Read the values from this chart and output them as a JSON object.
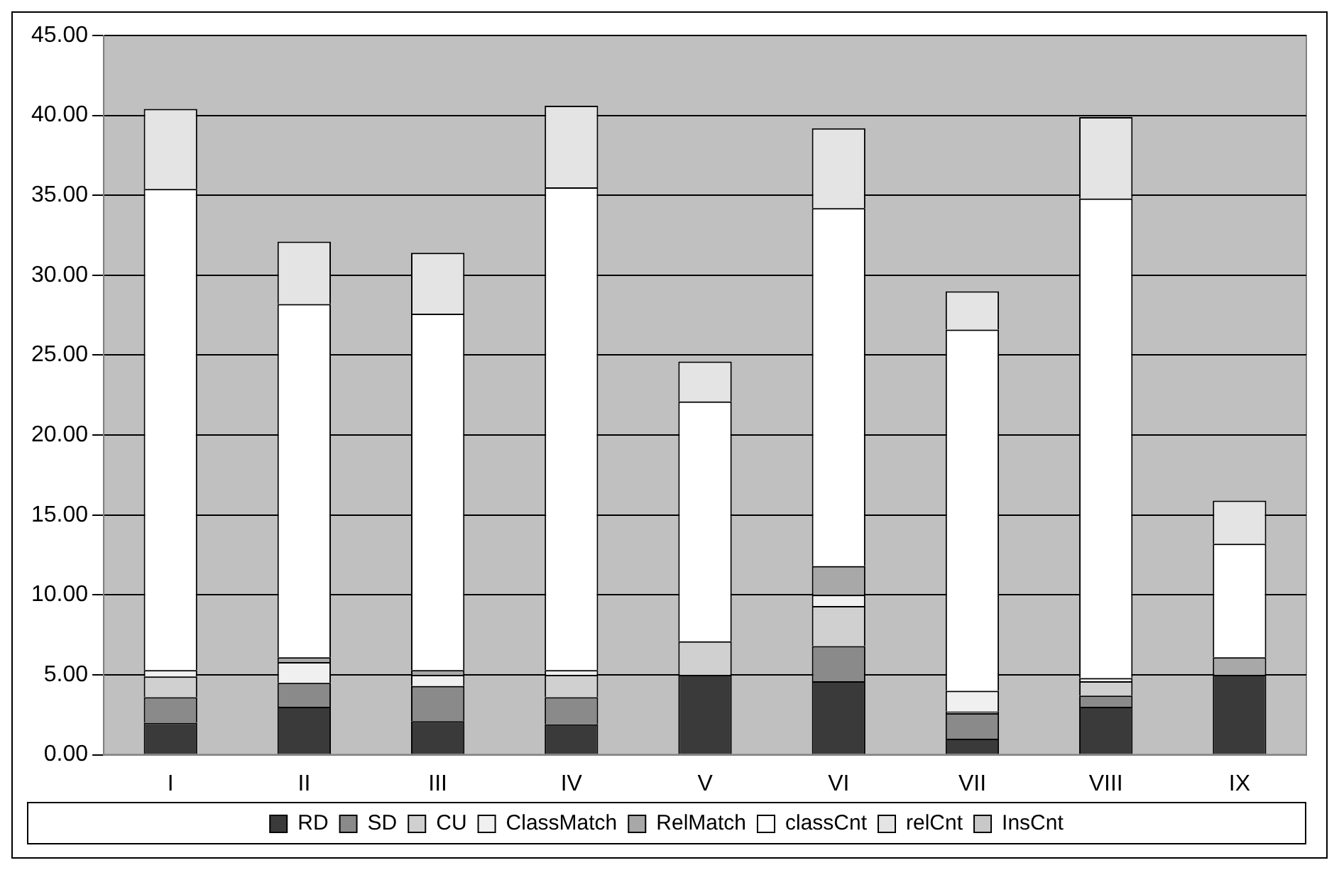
{
  "chart_data": {
    "type": "bar",
    "stacked": true,
    "categories": [
      "I",
      "II",
      "III",
      "IV",
      "V",
      "VI",
      "VII",
      "VIII",
      "IX"
    ],
    "series": [
      {
        "name": "RD",
        "color": "#3a3a3a",
        "values": [
          2.0,
          3.0,
          2.1,
          1.9,
          5.0,
          4.6,
          1.0,
          3.0,
          5.0
        ]
      },
      {
        "name": "SD",
        "color": "#8a8a8a",
        "values": [
          1.6,
          1.5,
          2.2,
          1.7,
          0,
          2.2,
          1.6,
          0.7,
          0
        ]
      },
      {
        "name": "CU",
        "color": "#d0d0d0",
        "values": [
          1.3,
          0,
          0,
          1.4,
          2.1,
          2.5,
          0.1,
          0.9,
          0
        ]
      },
      {
        "name": "ClassMatch",
        "color": "#f0f0f0",
        "values": [
          0.4,
          1.3,
          0.7,
          0.3,
          0,
          0.7,
          1.3,
          0.2,
          0
        ]
      },
      {
        "name": "RelMatch",
        "color": "#a8a8a8",
        "values": [
          0,
          0.3,
          0.3,
          0,
          0,
          1.8,
          0,
          0,
          1.1
        ]
      },
      {
        "name": "classCnt",
        "color": "#ffffff",
        "values": [
          30.1,
          22.1,
          22.3,
          30.2,
          15.0,
          22.4,
          22.6,
          30.0,
          7.1
        ]
      },
      {
        "name": "relCnt",
        "color": "#e4e4e4",
        "values": [
          5.0,
          3.9,
          3.8,
          5.1,
          2.5,
          5.0,
          2.4,
          5.1,
          2.7
        ]
      },
      {
        "name": "InsCnt",
        "color": "#c8c8c8",
        "values": [
          0,
          0,
          0,
          0,
          0,
          0,
          0,
          0,
          0
        ]
      }
    ],
    "ylim": [
      0,
      45
    ],
    "yticks": [
      {
        "value": 0,
        "label": "0.00"
      },
      {
        "value": 5,
        "label": "5.00"
      },
      {
        "value": 10,
        "label": "10.00"
      },
      {
        "value": 15,
        "label": "15.00"
      },
      {
        "value": 20,
        "label": "20.00"
      },
      {
        "value": 25,
        "label": "25.00"
      },
      {
        "value": 30,
        "label": "30.00"
      },
      {
        "value": 35,
        "label": "35.00"
      },
      {
        "value": 40,
        "label": "40.00"
      },
      {
        "value": 45,
        "label": "45.00"
      }
    ],
    "grid": "y",
    "legend": "bottom"
  }
}
